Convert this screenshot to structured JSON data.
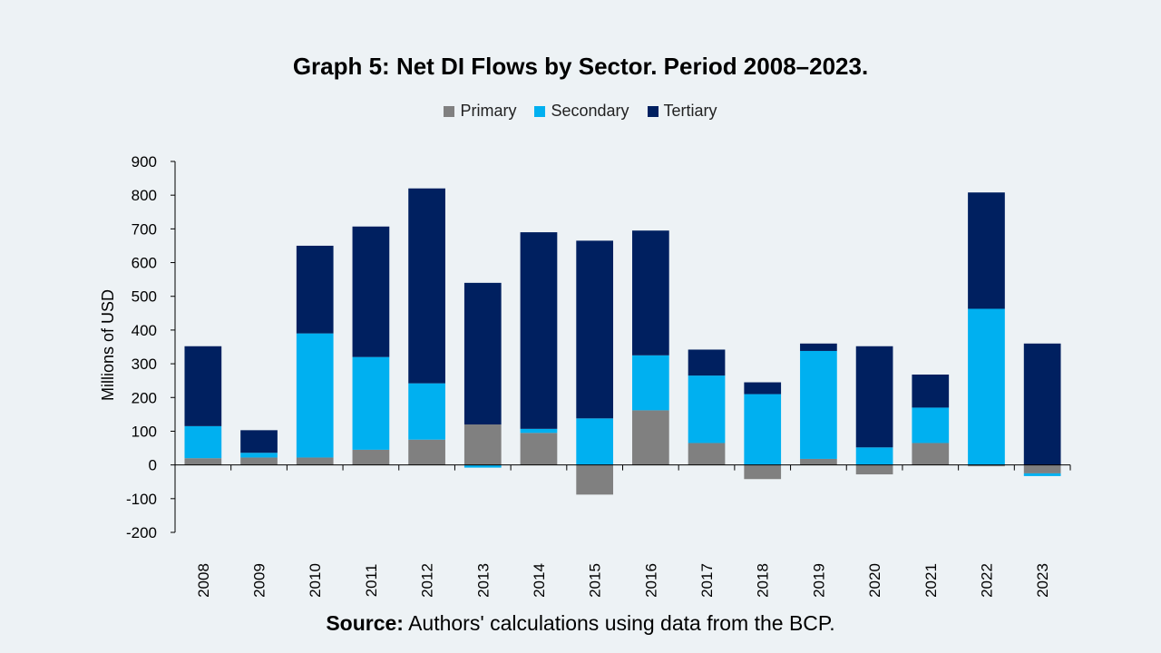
{
  "chart_data": {
    "type": "bar",
    "stacked": true,
    "title": "Graph 5: Net DI Flows by Sector. Period 2008–2023.",
    "ylabel": "Millions of USD",
    "ylim": [
      -200,
      900
    ],
    "yticks": [
      900,
      800,
      700,
      600,
      500,
      400,
      300,
      200,
      100,
      0,
      -100,
      -200
    ],
    "grid": false,
    "legend_position": "top",
    "categories": [
      "2008",
      "2009",
      "2010",
      "2011",
      "2012",
      "2013",
      "2014",
      "2015",
      "2016",
      "2017",
      "2018",
      "2019",
      "2020",
      "2021",
      "2022",
      "2023"
    ],
    "series": [
      {
        "name": "Primary",
        "color": "#808080",
        "values": [
          20,
          22,
          22,
          45,
          75,
          120,
          95,
          -88,
          162,
          65,
          -42,
          18,
          -28,
          65,
          -4,
          -25
        ]
      },
      {
        "name": "Secondary",
        "color": "#00b0f0",
        "values": [
          95,
          14,
          368,
          275,
          167,
          -8,
          12,
          138,
          163,
          200,
          210,
          320,
          52,
          105,
          463,
          -8
        ]
      },
      {
        "name": "Tertiary",
        "color": "#002060",
        "values": [
          237,
          67,
          260,
          387,
          578,
          420,
          583,
          527,
          370,
          77,
          35,
          22,
          300,
          98,
          345,
          360
        ]
      }
    ]
  },
  "source": {
    "label": "Source:",
    "text": " Authors' calculations using data from the BCP."
  }
}
